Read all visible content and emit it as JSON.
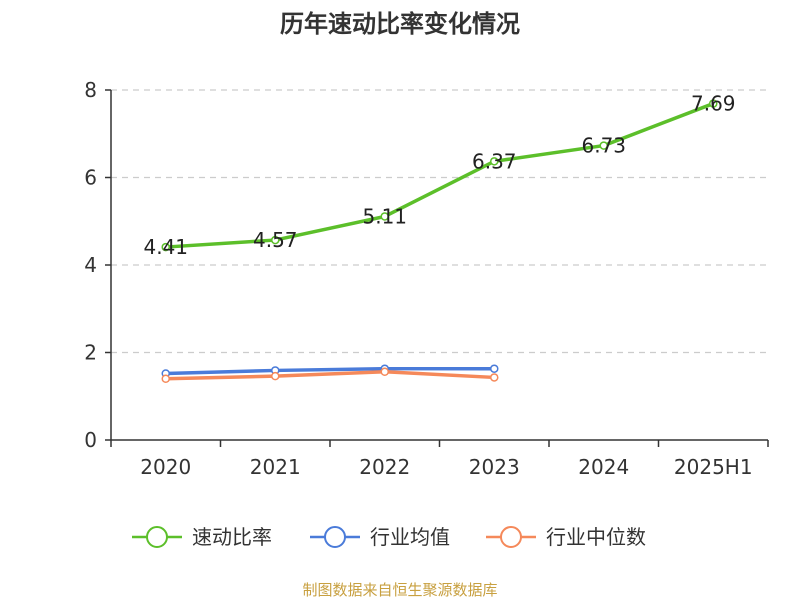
{
  "chart_data": {
    "type": "line",
    "title": "历年速动比率变化情况",
    "categories": [
      "2020",
      "2021",
      "2022",
      "2023",
      "2024",
      "2025H1"
    ],
    "ylim": [
      0,
      8
    ],
    "yticks": [
      0,
      2,
      4,
      6,
      8
    ],
    "grid": "horizontal-dashed",
    "legend_position": "bottom",
    "series": [
      {
        "name": "速动比率",
        "color": "#5cbf2a",
        "values": [
          4.41,
          4.57,
          5.11,
          6.37,
          6.73,
          7.69
        ],
        "labels": [
          "4.41",
          "4.57",
          "5.11",
          "6.37",
          "6.73",
          "7.69"
        ]
      },
      {
        "name": "行业均值",
        "color": "#4a7bd9",
        "values": [
          1.52,
          1.59,
          1.63,
          1.63,
          null,
          null
        ]
      },
      {
        "name": "行业中位数",
        "color": "#f5895a",
        "values": [
          1.4,
          1.46,
          1.56,
          1.43,
          null,
          null
        ]
      }
    ]
  },
  "source_text": "制图数据来自恒生聚源数据库"
}
